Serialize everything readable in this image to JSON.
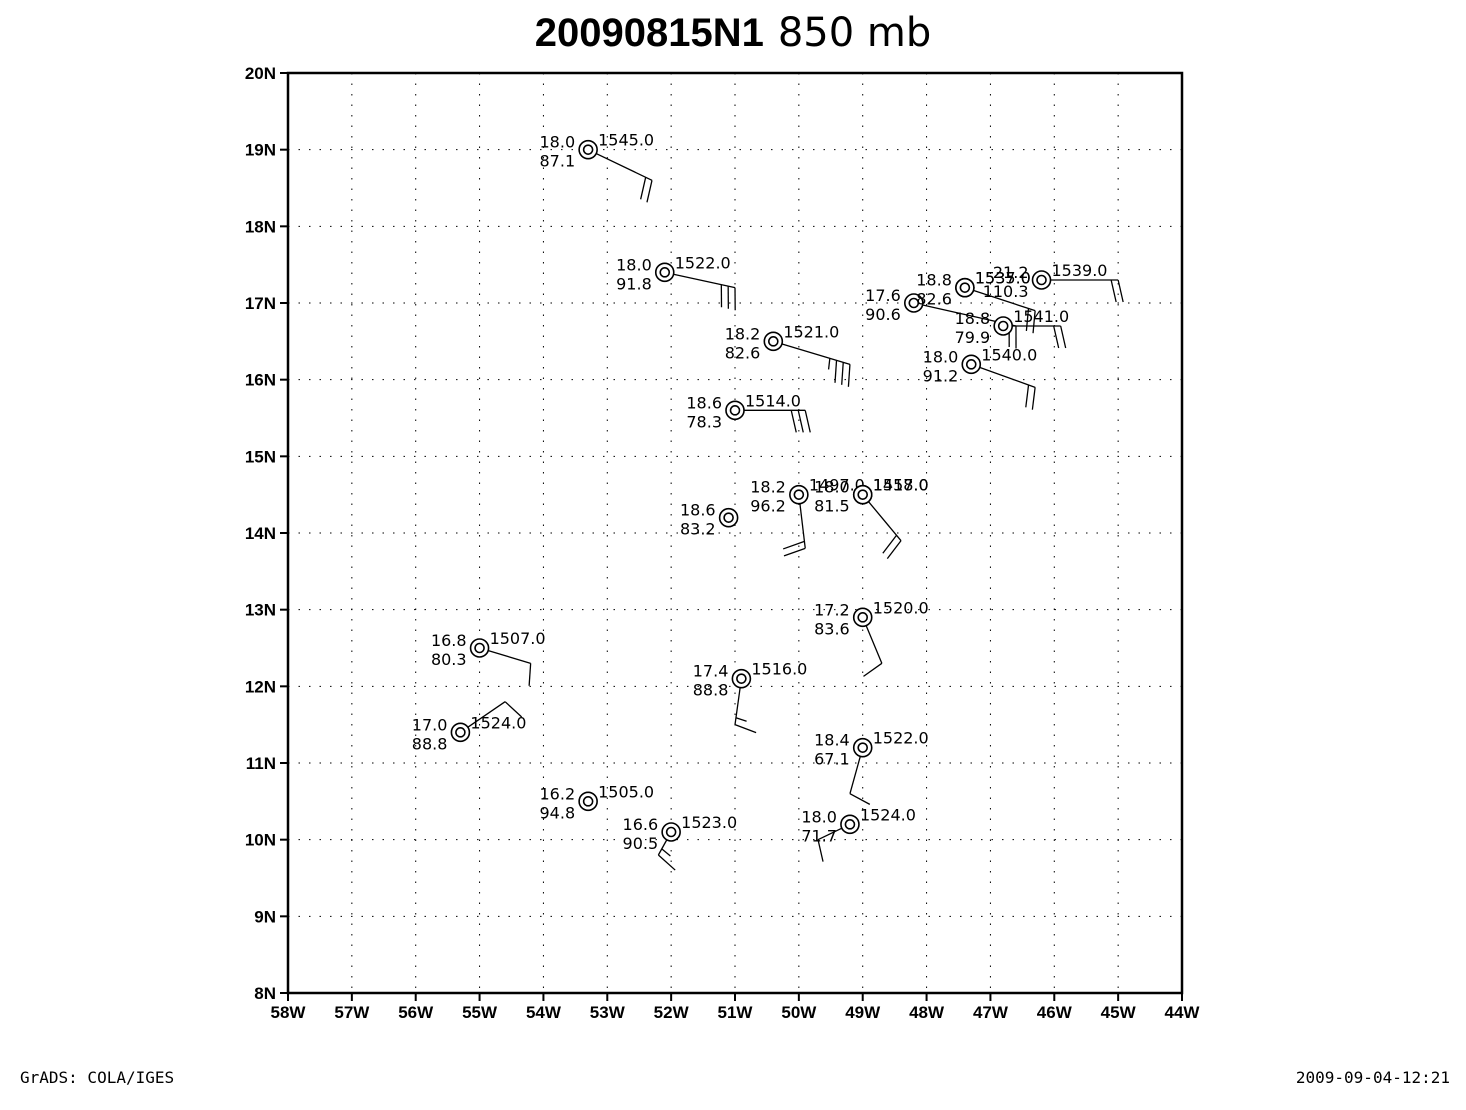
{
  "chart_data": {
    "type": "map",
    "title_main": "20090815N1",
    "title_level": "850  mb",
    "x_range": [
      -58,
      -44
    ],
    "y_range": [
      8,
      20
    ],
    "x_ticks": [
      {
        "v": -58,
        "label": "58W"
      },
      {
        "v": -57,
        "label": "57W"
      },
      {
        "v": -56,
        "label": "56W"
      },
      {
        "v": -55,
        "label": "55W"
      },
      {
        "v": -54,
        "label": "54W"
      },
      {
        "v": -53,
        "label": "53W"
      },
      {
        "v": -52,
        "label": "52W"
      },
      {
        "v": -51,
        "label": "51W"
      },
      {
        "v": -50,
        "label": "50W"
      },
      {
        "v": -49,
        "label": "49W"
      },
      {
        "v": -48,
        "label": "48W"
      },
      {
        "v": -47,
        "label": "47W"
      },
      {
        "v": -46,
        "label": "46W"
      },
      {
        "v": -45,
        "label": "45W"
      },
      {
        "v": -44,
        "label": "44W"
      }
    ],
    "y_ticks": [
      {
        "v": 8,
        "label": "8N"
      },
      {
        "v": 9,
        "label": "9N"
      },
      {
        "v": 10,
        "label": "10N"
      },
      {
        "v": 11,
        "label": "11N"
      },
      {
        "v": 12,
        "label": "12N"
      },
      {
        "v": 13,
        "label": "13N"
      },
      {
        "v": 14,
        "label": "14N"
      },
      {
        "v": 15,
        "label": "15N"
      },
      {
        "v": 16,
        "label": "16N"
      },
      {
        "v": 17,
        "label": "17N"
      },
      {
        "v": 18,
        "label": "18N"
      },
      {
        "v": 19,
        "label": "19N"
      },
      {
        "v": 20,
        "label": "20N"
      }
    ],
    "grid": "dotted",
    "stations": [
      {
        "lon": -53.3,
        "lat": 19.0,
        "temp": "18.0",
        "hum": "87.1",
        "height": "1545.0",
        "wind_to": [
          -52.3,
          18.6
        ],
        "barbs": 2,
        "half_barb": false
      },
      {
        "lon": -52.1,
        "lat": 17.4,
        "temp": "18.0",
        "hum": "91.8",
        "height": "1522.0",
        "wind_to": [
          -51.0,
          17.2
        ],
        "barbs": 3,
        "half_barb": false
      },
      {
        "lon": -50.4,
        "lat": 16.5,
        "temp": "18.2",
        "hum": "82.6",
        "height": "1521.0",
        "wind_to": [
          -49.2,
          16.2
        ],
        "barbs": 3,
        "half_barb": true
      },
      {
        "lon": -51.0,
        "lat": 15.6,
        "temp": "18.6",
        "hum": "78.3",
        "height": "1514.0",
        "wind_to": [
          -49.9,
          15.6
        ],
        "barbs": 3,
        "half_barb": false
      },
      {
        "lon": -48.2,
        "lat": 17.0,
        "temp": "17.6",
        "hum": "90.6",
        "height": "",
        "wind_to": [
          -46.6,
          16.7
        ],
        "barbs": 2,
        "half_barb": false
      },
      {
        "lon": -47.4,
        "lat": 17.2,
        "temp": "18.8",
        "hum": "82.6",
        "height": "1537.0",
        "wind_to": [
          -46.3,
          16.9
        ],
        "barbs": 2,
        "half_barb": false
      },
      {
        "lon": -46.2,
        "lat": 17.3,
        "temp": "21.2",
        "hum": "110.3",
        "height": "1539.0",
        "wind_to": [
          -45.0,
          17.3
        ],
        "barbs": 2,
        "half_barb": false
      },
      {
        "lon": -47.4,
        "lat": 17.2,
        "temp": "",
        "hum": "",
        "height": "1535.0",
        "wind_to": null,
        "barbs": 0,
        "half_barb": false
      },
      {
        "lon": -46.8,
        "lat": 16.7,
        "temp": "18.8",
        "hum": "79.9",
        "height": "1541.0",
        "wind_to": [
          -45.9,
          16.7
        ],
        "barbs": 2,
        "half_barb": false
      },
      {
        "lon": -47.3,
        "lat": 16.2,
        "temp": "18.0",
        "hum": "91.2",
        "height": "1540.0",
        "wind_to": [
          -46.3,
          15.9
        ],
        "barbs": 2,
        "half_barb": false
      },
      {
        "lon": -50.0,
        "lat": 14.5,
        "temp": "18.2",
        "hum": "96.2",
        "height": "1497.0",
        "wind_to": [
          -49.9,
          13.8
        ],
        "barbs": 2,
        "half_barb": false
      },
      {
        "lon": -51.1,
        "lat": 14.2,
        "temp": "18.6",
        "hum": "83.2",
        "height": "",
        "wind_to": null,
        "barbs": 0,
        "half_barb": false
      },
      {
        "lon": -49.0,
        "lat": 14.5,
        "temp": "18.0",
        "hum": "81.5",
        "height": "1518.0",
        "wind_to": [
          -48.4,
          13.9
        ],
        "barbs": 2,
        "half_barb": false
      },
      {
        "lon": -49.0,
        "lat": 14.5,
        "temp": "",
        "hum": "",
        "height": "1457.0",
        "wind_to": null,
        "barbs": 0,
        "half_barb": false
      },
      {
        "lon": -49.0,
        "lat": 12.9,
        "temp": "17.2",
        "hum": "83.6",
        "height": "1520.0",
        "wind_to": [
          -48.7,
          12.3
        ],
        "barbs": 1,
        "half_barb": false
      },
      {
        "lon": -55.0,
        "lat": 12.5,
        "temp": "16.8",
        "hum": "80.3",
        "height": "1507.0",
        "wind_to": [
          -54.2,
          12.3
        ],
        "barbs": 1,
        "half_barb": false
      },
      {
        "lon": -50.9,
        "lat": 12.1,
        "temp": "17.4",
        "hum": "88.8",
        "height": "1516.0",
        "wind_to": [
          -51.0,
          11.5
        ],
        "barbs": 1,
        "half_barb": true
      },
      {
        "lon": -55.3,
        "lat": 11.4,
        "temp": "17.0",
        "hum": "88.8",
        "height": "1524.0",
        "wind_to": [
          -54.6,
          11.8
        ],
        "barbs": 1,
        "half_barb": false
      },
      {
        "lon": -49.0,
        "lat": 11.2,
        "temp": "18.4",
        "hum": "67.1",
        "height": "1522.0",
        "wind_to": [
          -49.2,
          10.6
        ],
        "barbs": 1,
        "half_barb": false
      },
      {
        "lon": -53.3,
        "lat": 10.5,
        "temp": "16.2",
        "hum": "94.8",
        "height": "1505.0",
        "wind_to": null,
        "barbs": 0,
        "half_barb": false
      },
      {
        "lon": -52.0,
        "lat": 10.1,
        "temp": "16.6",
        "hum": "90.5",
        "height": "1523.0",
        "wind_to": [
          -52.2,
          9.8
        ],
        "barbs": 1,
        "half_barb": true
      },
      {
        "lon": -49.2,
        "lat": 10.2,
        "temp": "18.0",
        "hum": "71.7",
        "height": "1524.0",
        "wind_to": [
          -49.7,
          10.0
        ],
        "barbs": 1,
        "half_barb": false
      }
    ]
  },
  "footer": {
    "left": "GrADS: COLA/IGES",
    "right": "2009-09-04-12:21"
  }
}
